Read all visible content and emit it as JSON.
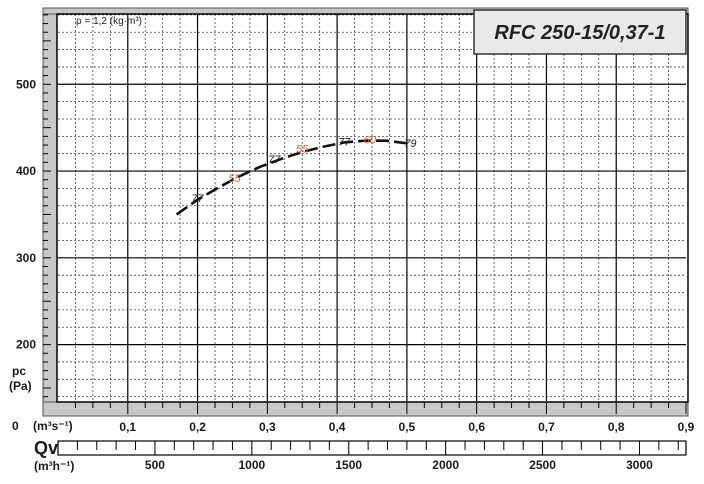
{
  "chart_data": {
    "type": "line",
    "title": "RFC 250-15/0,37-1",
    "density_note": "ρ = 1,2 (kg·m³)",
    "ylabel": "pc",
    "ylabel_unit": "(Pa)",
    "xlabel_unit": "(m³s⁻¹)",
    "qv_label": "Qv",
    "qv_unit": "(m³h⁻¹)",
    "origin_label": "0",
    "xlim": [
      0,
      0.9
    ],
    "ylim": [
      135,
      581
    ],
    "x_ticks": [
      "0,1",
      "0,2",
      "0,3",
      "0,4",
      "0,5",
      "0,6",
      "0,7",
      "0,8",
      "0,9"
    ],
    "x_tick_values": [
      0.1,
      0.2,
      0.3,
      0.4,
      0.5,
      0.6,
      0.7,
      0.8,
      0.9
    ],
    "y_ticks": [
      "200",
      "300",
      "400",
      "500"
    ],
    "y_tick_values": [
      200,
      300,
      400,
      500
    ],
    "qv_ticks": [
      "500",
      "1000",
      "1500",
      "2000",
      "2500",
      "3000"
    ],
    "qv_tick_values": [
      500,
      1000,
      1500,
      2000,
      2500,
      3000
    ],
    "grid": true,
    "series": [
      {
        "x": [
          0.17,
          0.2,
          0.23,
          0.26,
          0.29,
          0.32,
          0.35,
          0.38,
          0.41,
          0.44,
          0.47,
          0.5
        ],
        "y": [
          350,
          367,
          381,
          394,
          405,
          414,
          422,
          428,
          433,
          435,
          435,
          432
        ]
      }
    ],
    "annotations": [
      {
        "text": "77",
        "x": 0.2,
        "y": 368,
        "color": "#222222"
      },
      {
        "text": "55",
        "x": 0.253,
        "y": 391,
        "color": "#e0623c"
      },
      {
        "text": "77",
        "x": 0.31,
        "y": 413,
        "color": "#222222"
      },
      {
        "text": "55",
        "x": 0.35,
        "y": 425,
        "color": "#e0623c"
      },
      {
        "text": "77",
        "x": 0.41,
        "y": 433,
        "color": "#222222"
      },
      {
        "text": "60",
        "x": 0.447,
        "y": 435,
        "color": "#e0623c"
      },
      {
        "text": "79",
        "x": 0.505,
        "y": 431,
        "color": "#222222"
      }
    ]
  },
  "colors": {
    "background": "#ffffff",
    "frame": "#c8c8c8",
    "grid_major": "#000000",
    "grid_minor": "#444444",
    "curve": "#111111",
    "accent": "#e0623c",
    "title_box": "#e8e8e8"
  }
}
